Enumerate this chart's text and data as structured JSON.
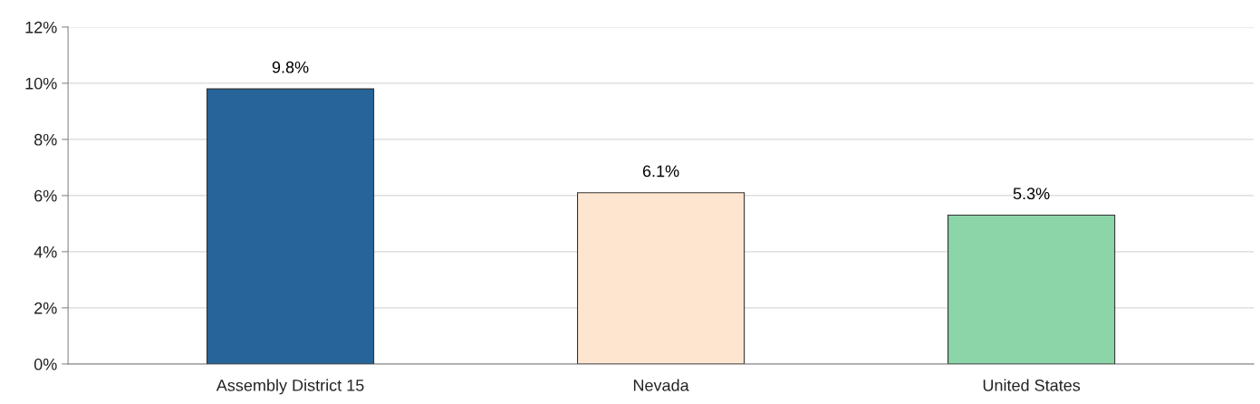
{
  "chart_data": {
    "type": "bar",
    "categories": [
      "Assembly District 15",
      "Nevada",
      "United States"
    ],
    "values": [
      9.8,
      6.1,
      5.3
    ],
    "colors": [
      "#26649a",
      "#fde5cf",
      "#8bd5a8"
    ],
    "value_labels": [
      "9.8%",
      "6.1%",
      "5.3%"
    ],
    "ylim": [
      0,
      12
    ],
    "yticks": [
      {
        "value": 0,
        "label": "0%"
      },
      {
        "value": 2,
        "label": "2%"
      },
      {
        "value": 4,
        "label": "4%"
      },
      {
        "value": 6,
        "label": "6%"
      },
      {
        "value": 8,
        "label": "8%"
      },
      {
        "value": 10,
        "label": "10%"
      },
      {
        "value": 12,
        "label": "12%"
      }
    ],
    "grid": "y"
  }
}
